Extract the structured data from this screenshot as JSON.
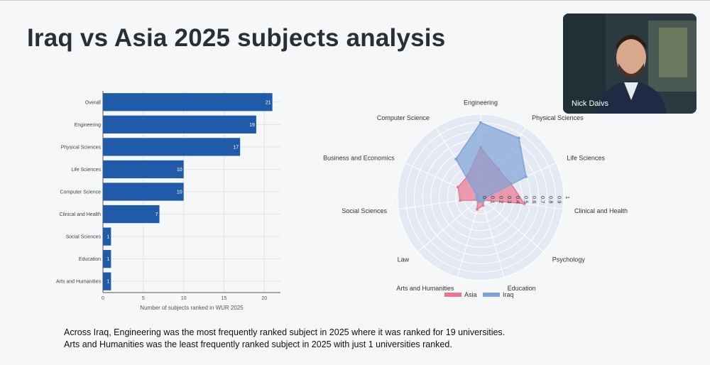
{
  "slide": {
    "title": "Iraq vs Asia 2025 subjects analysis",
    "caption_line1": "Across Iraq, Engineering was the most frequently ranked subject in 2025 where it was ranked for 19 universities.",
    "caption_line2": "Arts and Humanities was the least frequently ranked subject in 2025 with just 1 universities ranked."
  },
  "video": {
    "participant_name": "Nick Daivs"
  },
  "chart_data": [
    {
      "type": "bar",
      "orientation": "horizontal",
      "categories": [
        "Overall",
        "Engineering",
        "Physical Sciences",
        "Life Sciences",
        "Computer Science",
        "Clinical and Health",
        "Social Sciences",
        "Education",
        "Arts and Humanities"
      ],
      "values": [
        21,
        19,
        17,
        10,
        10,
        7,
        1,
        1,
        1
      ],
      "xlabel": "Number of subjects ranked in WUR 2025",
      "xlim": [
        0,
        22
      ],
      "xticks": [
        0,
        5,
        10,
        15,
        20
      ],
      "bar_color": "#1f5ba8",
      "grid": true
    },
    {
      "type": "radar",
      "axes": [
        "Engineering",
        "Physical Sciences",
        "Life Sciences",
        "Clinical and Health",
        "Psychology",
        "Education",
        "Arts and Humanities",
        "Law",
        "Social Sciences",
        "Business and Economics",
        "Computer Science"
      ],
      "radial_ticks": [
        "0",
        "0.1",
        "0.2",
        "0.3",
        "0.4",
        "0.5",
        "0.6",
        "0.7",
        "0.8",
        "0.9",
        "1"
      ],
      "series": [
        {
          "name": "Asia",
          "color": "#e8788f",
          "values": [
            0.6,
            0.4,
            0.4,
            0.53,
            0.05,
            0.1,
            0.15,
            0.05,
            0.25,
            0.3,
            0.3
          ]
        },
        {
          "name": "Iraq",
          "color": "#7ea3d6",
          "values": [
            0.9,
            0.85,
            0.6,
            0.05,
            0.05,
            0.05,
            0.05,
            0.05,
            0.05,
            0.05,
            0.55
          ]
        }
      ],
      "legend_position": "bottom"
    }
  ]
}
